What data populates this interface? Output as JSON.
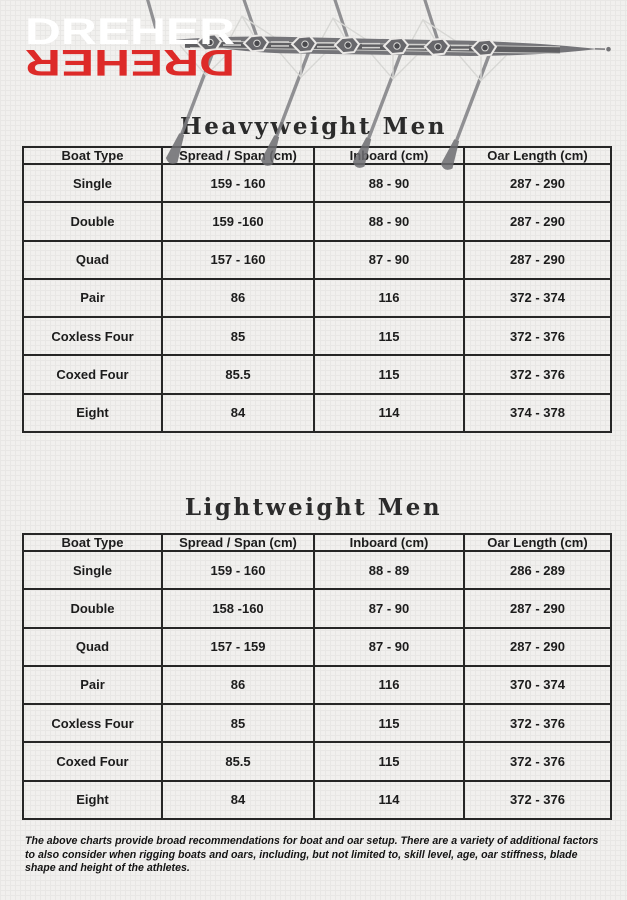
{
  "logo": {
    "brand": "DREHER",
    "brand_reflection": "DREHER",
    "colors": {
      "brand_text": "#ffffff",
      "reflection_text": "#dd2a28"
    }
  },
  "illustration": {
    "name": "rowing-eight-shell-top-view"
  },
  "tables": [
    {
      "title": "Heavyweight Men",
      "headers": [
        "Boat Type",
        "Spread / Span (cm)",
        "Inboard (cm)",
        "Oar Length (cm)"
      ],
      "rows": [
        [
          "Single",
          "159 - 160",
          "88 - 90",
          "287 - 290"
        ],
        [
          "Double",
          "159 -160",
          "88 - 90",
          "287 - 290"
        ],
        [
          "Quad",
          "157 - 160",
          "87 - 90",
          "287 - 290"
        ],
        [
          "Pair",
          "86",
          "116",
          "372 - 374"
        ],
        [
          "Coxless Four",
          "85",
          "115",
          "372 - 376"
        ],
        [
          "Coxed Four",
          "85.5",
          "115",
          "372 - 376"
        ],
        [
          "Eight",
          "84",
          "114",
          "374 - 378"
        ]
      ]
    },
    {
      "title": "Lightweight Men",
      "headers": [
        "Boat Type",
        "Spread / Span (cm)",
        "Inboard (cm)",
        "Oar Length (cm)"
      ],
      "rows": [
        [
          "Single",
          "159 - 160",
          "88 - 89",
          "286 - 289"
        ],
        [
          "Double",
          "158 -160",
          "87 - 90",
          "287 - 290"
        ],
        [
          "Quad",
          "157 - 159",
          "87 - 90",
          "287 - 290"
        ],
        [
          "Pair",
          "86",
          "116",
          "370 - 374"
        ],
        [
          "Coxless Four",
          "85",
          "115",
          "372 - 376"
        ],
        [
          "Coxed Four",
          "85.5",
          "115",
          "372 - 376"
        ],
        [
          "Eight",
          "84",
          "114",
          "372 - 376"
        ]
      ]
    }
  ],
  "footnote": "The above charts provide broad recommendations for boat and oar setup.  There are a variety of additional factors to also consider when rigging boats and oars, including, but not limited to, skill level, age, oar stiffness, blade shape and height of the athletes."
}
